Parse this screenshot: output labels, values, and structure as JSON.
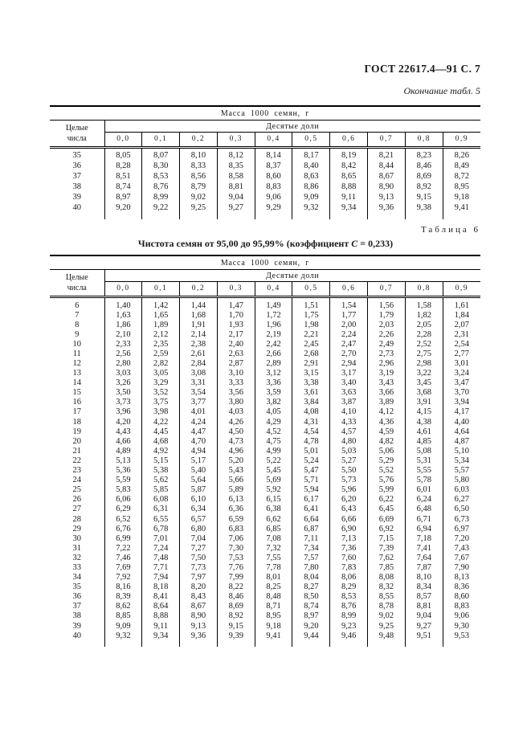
{
  "colors": {
    "paper": "#ffffff",
    "ink": "#1a1a1a",
    "rule": "#000000"
  },
  "header": {
    "gost": "ГОСТ 22617.4—91 С. 7",
    "continuation_note": "Окончание табл. 5"
  },
  "table6_caption": {
    "number_label": "Таблица 6",
    "title_prefix": "Чистота семян от 95,00 до 95,99%  (коэффициент ",
    "title_c": "С",
    "title_suffix": " = 0,233)"
  },
  "tables": [
    {
      "name": "table-5-end",
      "title": "Масса 1000 семян, г",
      "col1_header": "Целые\nчисла",
      "group_header": "Десятые доли",
      "columns": [
        "0,0",
        "0,1",
        "0,2",
        "0,3",
        "0,4",
        "0,5",
        "0,6",
        "0,7",
        "0,8",
        "0,9"
      ],
      "rows": [
        {
          "n": "35",
          "values": [
            "8,05",
            "8,07",
            "8,10",
            "8,12",
            "8,14",
            "8,17",
            "8,19",
            "8,21",
            "8,23",
            "8,26"
          ]
        },
        {
          "n": "36",
          "values": [
            "8,28",
            "8,30",
            "8,33",
            "8,35",
            "8,37",
            "8,40",
            "8,42",
            "8,44",
            "8,46",
            "8,49"
          ]
        },
        {
          "n": "37",
          "values": [
            "8,51",
            "8,53",
            "8,56",
            "8,58",
            "8,60",
            "8,63",
            "8,65",
            "8,67",
            "8,69",
            "8,72"
          ]
        },
        {
          "n": "38",
          "values": [
            "8,74",
            "8,76",
            "8,79",
            "8,81",
            "8,83",
            "8,86",
            "8,88",
            "8,90",
            "8,92",
            "8,95"
          ]
        },
        {
          "n": "39",
          "values": [
            "8,97",
            "8,99",
            "9,02",
            "9,04",
            "9,06",
            "9,09",
            "9,11",
            "9,13",
            "9,15",
            "9,18"
          ]
        },
        {
          "n": "40",
          "values": [
            "9,20",
            "9,22",
            "9,25",
            "9,27",
            "9,29",
            "9,32",
            "9,34",
            "9,36",
            "9,38",
            "9,41"
          ]
        }
      ]
    },
    {
      "name": "table-6",
      "title": "Масса 1000 семян, г",
      "col1_header": "Целые\nчисла",
      "group_header": "Десятые доли",
      "columns": [
        "0,0",
        "0,1",
        "0,2",
        "0,3",
        "0,4",
        "0,5",
        "0,6",
        "0,7",
        "0,8",
        "0,9"
      ],
      "rows": [
        {
          "n": "6",
          "values": [
            "1,40",
            "1,42",
            "1,44",
            "1,47",
            "1,49",
            "1,51",
            "1,54",
            "1,56",
            "1,58",
            "1,61"
          ]
        },
        {
          "n": "7",
          "values": [
            "1,63",
            "1,65",
            "1,68",
            "1,70",
            "1,72",
            "1,75",
            "1,77",
            "1,79",
            "1,82",
            "1,84"
          ]
        },
        {
          "n": "8",
          "values": [
            "1,86",
            "1,89",
            "1,91",
            "1,93",
            "1,96",
            "1,98",
            "2,00",
            "2,03",
            "2,05",
            "2,07"
          ]
        },
        {
          "n": "9",
          "values": [
            "2,10",
            "2,12",
            "2,14",
            "2,17",
            "2,19",
            "2,21",
            "2,24",
            "2,26",
            "2,28",
            "2,31"
          ]
        },
        {
          "n": "10",
          "values": [
            "2,33",
            "2,35",
            "2,38",
            "2,40",
            "2,42",
            "2,45",
            "2,47",
            "2,49",
            "2,52",
            "2,54"
          ]
        },
        {
          "n": "11",
          "values": [
            "2,56",
            "2,59",
            "2,61",
            "2,63",
            "2,66",
            "2,68",
            "2,70",
            "2,73",
            "2,75",
            "2,77"
          ]
        },
        {
          "n": "12",
          "values": [
            "2,80",
            "2,82",
            "2,84",
            "2,87",
            "2,89",
            "2,91",
            "2,94",
            "2,96",
            "2,98",
            "3,01"
          ]
        },
        {
          "n": "13",
          "values": [
            "3,03",
            "3,05",
            "3,08",
            "3,10",
            "3,12",
            "3,15",
            "3,17",
            "3,19",
            "3,22",
            "3,24"
          ]
        },
        {
          "n": "14",
          "values": [
            "3,26",
            "3,29",
            "3,31",
            "3,33",
            "3,36",
            "3,38",
            "3,40",
            "3,43",
            "3,45",
            "3,47"
          ]
        },
        {
          "n": "15",
          "values": [
            "3,50",
            "3,52",
            "3,54",
            "3,56",
            "3,59",
            "3,61",
            "3,63",
            "3,66",
            "3,68",
            "3,70"
          ]
        },
        {
          "n": "16",
          "values": [
            "3,73",
            "3,75",
            "3,77",
            "3,80",
            "3,82",
            "3,84",
            "3,87",
            "3,89",
            "3,91",
            "3,94"
          ]
        },
        {
          "n": "17",
          "values": [
            "3,96",
            "3,98",
            "4,01",
            "4,03",
            "4,05",
            "4,08",
            "4,10",
            "4,12",
            "4,15",
            "4,17"
          ]
        },
        {
          "n": "18",
          "values": [
            "4,20",
            "4,22",
            "4,24",
            "4,26",
            "4,29",
            "4,31",
            "4,33",
            "4,36",
            "4,38",
            "4,40"
          ]
        },
        {
          "n": "19",
          "values": [
            "4,43",
            "4,45",
            "4,47",
            "4,50",
            "4,52",
            "4,54",
            "4,57",
            "4,59",
            "4,61",
            "4,64"
          ]
        },
        {
          "n": "20",
          "values": [
            "4,66",
            "4,68",
            "4,70",
            "4,73",
            "4,75",
            "4,78",
            "4,80",
            "4,82",
            "4,85",
            "4,87"
          ]
        },
        {
          "n": "21",
          "values": [
            "4,89",
            "4,92",
            "4,94",
            "4,96",
            "4,99",
            "5,01",
            "5,03",
            "5,06",
            "5,08",
            "5,10"
          ]
        },
        {
          "n": "22",
          "values": [
            "5,13",
            "5,15",
            "5,17",
            "5,20",
            "5,22",
            "5,24",
            "5,27",
            "5,29",
            "5,31",
            "5,34"
          ]
        },
        {
          "n": "23",
          "values": [
            "5,36",
            "5,38",
            "5,40",
            "5,43",
            "5,45",
            "5,47",
            "5,50",
            "5,52",
            "5,55",
            "5,57"
          ]
        },
        {
          "n": "24",
          "values": [
            "5,59",
            "5,62",
            "5,64",
            "5,66",
            "5,69",
            "5,71",
            "5,73",
            "5,76",
            "5,78",
            "5,80"
          ]
        },
        {
          "n": "25",
          "values": [
            "5,83",
            "5,85",
            "5,87",
            "5,89",
            "5,92",
            "5,94",
            "5,96",
            "5,99",
            "6,01",
            "6,03"
          ]
        },
        {
          "n": "26",
          "values": [
            "6,06",
            "6,08",
            "6,10",
            "6,13",
            "6,15",
            "6,17",
            "6,20",
            "6,22",
            "6,24",
            "6,27"
          ]
        },
        {
          "n": "27",
          "values": [
            "6,29",
            "6,31",
            "6,34",
            "6,36",
            "6,38",
            "6,41",
            "6,43",
            "6,45",
            "6,48",
            "6,50"
          ]
        },
        {
          "n": "28",
          "values": [
            "6,52",
            "6,55",
            "6,57",
            "6,59",
            "6,62",
            "6,64",
            "6,66",
            "6,69",
            "6,71",
            "6,73"
          ]
        },
        {
          "n": "29",
          "values": [
            "6,76",
            "6,78",
            "6,80",
            "6,83",
            "6,85",
            "6,87",
            "6,90",
            "6,92",
            "6,94",
            "6,97"
          ]
        },
        {
          "n": "30",
          "values": [
            "6,99",
            "7,01",
            "7,04",
            "7,06",
            "7,08",
            "7,11",
            "7,13",
            "7,15",
            "7,18",
            "7,20"
          ]
        },
        {
          "n": "31",
          "values": [
            "7,22",
            "7,24",
            "7,27",
            "7,30",
            "7,32",
            "7,34",
            "7,36",
            "7,39",
            "7,41",
            "7,43"
          ]
        },
        {
          "n": "32",
          "values": [
            "7,46",
            "7,48",
            "7,50",
            "7,53",
            "7,55",
            "7,57",
            "7,60",
            "7,62",
            "7,64",
            "7,67"
          ]
        },
        {
          "n": "33",
          "values": [
            "7,69",
            "7,71",
            "7,73",
            "7,76",
            "7,78",
            "7,80",
            "7,83",
            "7,85",
            "7,87",
            "7,90"
          ]
        },
        {
          "n": "34",
          "values": [
            "7,92",
            "7,94",
            "7,97",
            "7,99",
            "8,01",
            "8,04",
            "8,06",
            "8,08",
            "8,10",
            "8,13"
          ]
        },
        {
          "n": "35",
          "values": [
            "8,16",
            "8,18",
            "8,20",
            "8,22",
            "8,25",
            "8,27",
            "8,29",
            "8,32",
            "8,34",
            "8,36"
          ]
        },
        {
          "n": "36",
          "values": [
            "8,39",
            "8,41",
            "8,43",
            "8,46",
            "8,48",
            "8,50",
            "8,53",
            "8,55",
            "8,57",
            "8,60"
          ]
        },
        {
          "n": "37",
          "values": [
            "8,62",
            "8,64",
            "8,67",
            "8,69",
            "8,71",
            "8,74",
            "8,76",
            "8,78",
            "8,81",
            "8,83"
          ]
        },
        {
          "n": "38",
          "values": [
            "8,85",
            "8,88",
            "8,90",
            "8,92",
            "8,95",
            "8,97",
            "8,99",
            "9,02",
            "9,04",
            "9,06"
          ]
        },
        {
          "n": "39",
          "values": [
            "9,09",
            "9,11",
            "9,13",
            "9,15",
            "9,18",
            "9,20",
            "9,23",
            "9,25",
            "9,27",
            "9,30"
          ]
        },
        {
          "n": "40",
          "values": [
            "9,32",
            "9,34",
            "9,36",
            "9,39",
            "9,41",
            "9,44",
            "9,46",
            "9,48",
            "9,51",
            "9,53"
          ]
        }
      ]
    }
  ]
}
